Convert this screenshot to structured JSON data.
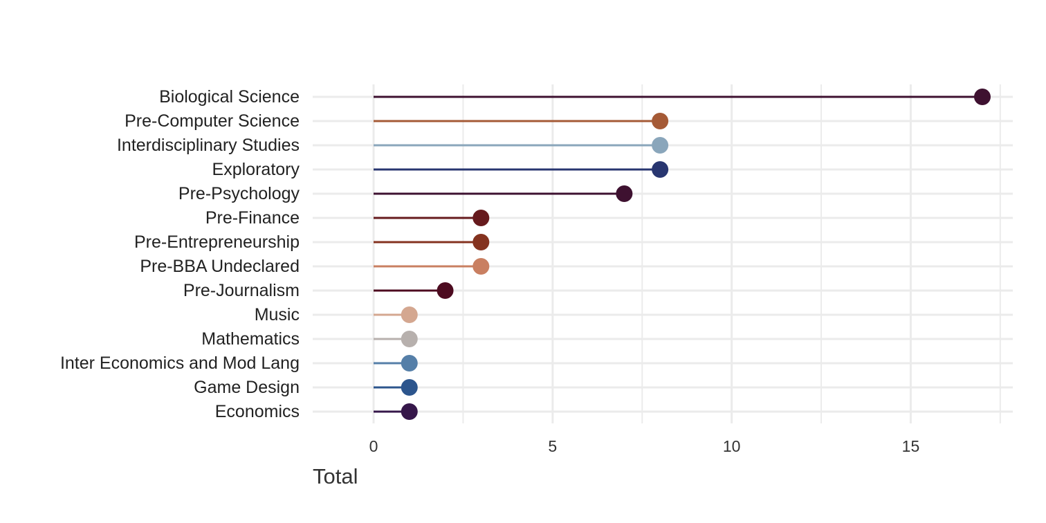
{
  "chart_data": {
    "type": "lollipop",
    "xlabel": "Total",
    "ylabel": "",
    "xlim": [
      -1.7,
      17.85
    ],
    "xticks": [
      0,
      5,
      10,
      15
    ],
    "grid": true,
    "legend": "none",
    "series": [
      {
        "category": "Biological Science",
        "value": 17,
        "color": "#3e1130"
      },
      {
        "category": "Pre-Computer Science",
        "value": 8,
        "color": "#a55a36"
      },
      {
        "category": "Interdisciplinary Studies",
        "value": 8,
        "color": "#8aa6bb"
      },
      {
        "category": "Exploratory",
        "value": 8,
        "color": "#283670"
      },
      {
        "category": "Pre-Psychology",
        "value": 7,
        "color": "#3e1130"
      },
      {
        "category": "Pre-Finance",
        "value": 3,
        "color": "#661a1d"
      },
      {
        "category": "Pre-Entrepreneurship",
        "value": 3,
        "color": "#84321f"
      },
      {
        "category": "Pre-BBA Undeclared",
        "value": 3,
        "color": "#c97f61"
      },
      {
        "category": "Pre-Journalism",
        "value": 2,
        "color": "#4d0b20"
      },
      {
        "category": "Music",
        "value": 1,
        "color": "#d4a790"
      },
      {
        "category": "Mathematics",
        "value": 1,
        "color": "#b7b0ad"
      },
      {
        "category": "Inter Economics and Mod Lang",
        "value": 1,
        "color": "#557fa8"
      },
      {
        "category": "Game Design",
        "value": 1,
        "color": "#2c558d"
      },
      {
        "category": "Economics",
        "value": 1,
        "color": "#36174a"
      }
    ]
  }
}
